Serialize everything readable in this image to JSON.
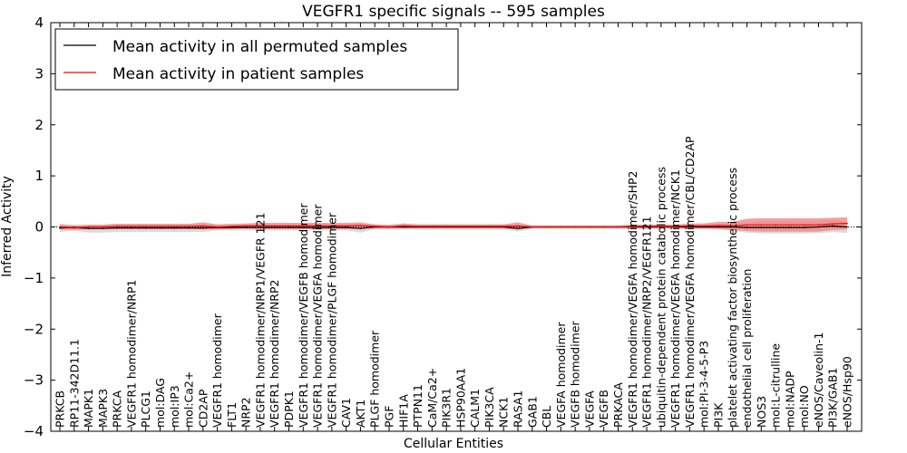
{
  "chart_data": {
    "type": "line",
    "title": "VEGFR1 specific signals -- 595 samples",
    "xlabel": "Cellular Entities",
    "ylabel": "Inferred Activity",
    "ylim": [
      -4,
      4
    ],
    "yticks": [
      "4",
      "3",
      "2",
      "1",
      "0",
      "−1",
      "−2",
      "−3",
      "−4"
    ],
    "yticks_values": [
      4,
      3,
      2,
      1,
      0,
      -1,
      -2,
      -3,
      -4
    ],
    "grid": false,
    "legend_position": "top-left",
    "categories": [
      "PRKCB",
      "RP11-342D11.1",
      "MAPK1",
      "MAPK3",
      "PRKCA",
      "VEGFR1 homodimer/NRP1",
      "PLCG1",
      "mol:DAG",
      "mol:IP3",
      "mol:Ca2+",
      "CD2AP",
      "VEGFR1 homodimer",
      "FLT1",
      "NRP2",
      "VEGFR1 homodimer/NRP1/VEGFR 121",
      "VEGFR1 homodimer/NRP2",
      "PDPK1",
      "VEGFR1 homodimer/VEGFB homodimer",
      "VEGFR1 homodimer/VEGFA homodimer",
      "VEGFR1 homodimer/PLGF homodimer",
      "CAV1",
      "AKT1",
      "PLGF homodimer",
      "PGF",
      "HIF1A",
      "PTPN11",
      "CaM/Ca2+",
      "PIK3R1",
      "HSP90AA1",
      "CALM1",
      "PIK3CA",
      "NCK1",
      "RASA1",
      "GAB1",
      "CBL",
      "VEGFA homodimer",
      "VEGFB homodimer",
      "VEGFA",
      "VEGFB",
      "PRKACA",
      "VEGFR1 homodimer/VEGFA homodimer/SHP2",
      "VEGFR1 homodimer/NRP2/VEGFR121",
      "ubiquitin-dependent protein catabolic process",
      "VEGFR1 homodimer/VEGFA homodimer/NCK1",
      "VEGFR1 homodimer/VEGFA homodimer/CBL/CD2AP",
      "mol:PI-3-4-5-P3",
      "PI3K",
      "platelet activating factor biosynthetic process",
      "endothelial cell proliferation",
      "NOS3",
      "mol:L-citrulline",
      "mol:NADP",
      "mol:NO",
      "eNOS/Caveolin-1",
      "PI3K/GAB1",
      "eNOS/Hsp90"
    ],
    "series": [
      {
        "name": "Mean activity in all permuted samples",
        "color": "#000000",
        "band_color": "#cccccc",
        "values": [
          -0.02,
          -0.01,
          -0.03,
          -0.03,
          -0.02,
          -0.02,
          -0.02,
          -0.02,
          -0.02,
          -0.02,
          -0.02,
          -0.01,
          -0.01,
          -0.01,
          -0.01,
          -0.01,
          -0.01,
          -0.01,
          -0.01,
          -0.01,
          -0.01,
          -0.03,
          0.0,
          0.0,
          0.0,
          0.0,
          0.0,
          0.0,
          0.0,
          0.0,
          0.0,
          0.0,
          -0.03,
          0.0,
          0.0,
          0.0,
          0.0,
          0.0,
          0.0,
          0.0,
          0.0,
          0.0,
          0.0,
          0.0,
          0.0,
          0.0,
          0.0,
          0.0,
          -0.01,
          -0.01,
          -0.01,
          -0.01,
          -0.01,
          0.0,
          0.02,
          0.0
        ],
        "band_half_width": [
          0.08,
          0.06,
          0.08,
          0.08,
          0.08,
          0.08,
          0.08,
          0.08,
          0.08,
          0.08,
          0.08,
          0.06,
          0.06,
          0.06,
          0.06,
          0.06,
          0.06,
          0.06,
          0.06,
          0.06,
          0.06,
          0.08,
          0.05,
          0.05,
          0.05,
          0.05,
          0.05,
          0.05,
          0.05,
          0.05,
          0.05,
          0.05,
          0.06,
          0.04,
          0.04,
          0.04,
          0.04,
          0.04,
          0.04,
          0.04,
          0.05,
          0.05,
          0.05,
          0.05,
          0.05,
          0.05,
          0.05,
          0.08,
          0.1,
          0.12,
          0.12,
          0.12,
          0.12,
          0.12,
          0.12,
          0.12
        ]
      },
      {
        "name": "Mean activity in patient samples",
        "color": "#ff0000",
        "band_color": "#f08080",
        "values": [
          0.0,
          -0.02,
          0.0,
          0.0,
          0.01,
          0.01,
          0.01,
          0.01,
          0.01,
          0.01,
          0.02,
          0.0,
          0.01,
          0.02,
          0.02,
          0.02,
          0.02,
          0.02,
          0.02,
          0.02,
          0.02,
          0.03,
          0.01,
          0.0,
          0.02,
          0.01,
          0.01,
          0.01,
          0.01,
          0.01,
          0.01,
          0.01,
          0.02,
          0.0,
          0.0,
          0.0,
          0.0,
          0.0,
          0.0,
          0.0,
          0.01,
          0.01,
          0.01,
          0.01,
          0.02,
          0.02,
          0.03,
          0.02,
          0.04,
          0.04,
          0.04,
          0.04,
          0.04,
          0.04,
          0.06,
          0.07
        ],
        "band_half_width": [
          0.05,
          0.04,
          0.04,
          0.04,
          0.05,
          0.05,
          0.05,
          0.05,
          0.05,
          0.05,
          0.07,
          0.05,
          0.05,
          0.05,
          0.06,
          0.06,
          0.06,
          0.06,
          0.06,
          0.06,
          0.06,
          0.06,
          0.04,
          0.03,
          0.05,
          0.04,
          0.04,
          0.04,
          0.04,
          0.04,
          0.04,
          0.04,
          0.07,
          0.02,
          0.02,
          0.02,
          0.02,
          0.02,
          0.02,
          0.02,
          0.03,
          0.03,
          0.03,
          0.03,
          0.05,
          0.05,
          0.07,
          0.08,
          0.12,
          0.13,
          0.13,
          0.13,
          0.13,
          0.13,
          0.12,
          0.12
        ]
      }
    ]
  }
}
